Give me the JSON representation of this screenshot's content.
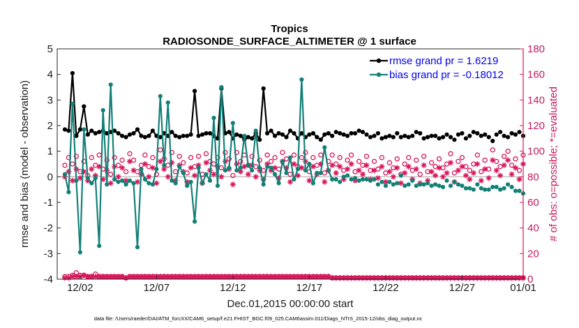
{
  "title": "Tropics",
  "subtitle": "RADIOSONDE_SURFACE_ALTIMETER @ 1 surface",
  "footer": "data file: /Users/raeder/DAI/ATM_forcXX/CAM6_setup/f.e21.FHIST_BGC.f09_025.CAM6assim.011/Diags_NTrS_2015-12/obs_diag_output.nc",
  "colors": {
    "rmse": "#000000",
    "bias": "#138077",
    "obs": "#d9155b",
    "zero_line": "#bdbdbd",
    "legend_text": "#0000ee"
  },
  "chart_data": {
    "type": "line",
    "title": "Tropics",
    "subtitle": "RADIOSONDE_SURFACE_ALTIMETER @ 1 surface",
    "xlabel": "Dec.01,2015 00:00:00 start",
    "ylabel": "rmse and bias (model - observation)",
    "ylabel_right": "# of obs: o=possible; *=evaluated",
    "xlim": [
      0.5,
      31.0
    ],
    "ylim": [
      -4,
      5
    ],
    "ylim_right": [
      0,
      180
    ],
    "xticks": [
      {
        "value": 2,
        "label": "12/02"
      },
      {
        "value": 7,
        "label": "12/07"
      },
      {
        "value": 12,
        "label": "12/12"
      },
      {
        "value": 17,
        "label": "12/17"
      },
      {
        "value": 22,
        "label": "12/22"
      },
      {
        "value": 27,
        "label": "12/27"
      },
      {
        "value": 32,
        "label": "01/01"
      }
    ],
    "yticks": [
      -4,
      -3,
      -2,
      -1,
      0,
      1,
      2,
      3,
      4,
      5
    ],
    "yticks_right": [
      0,
      20,
      40,
      60,
      80,
      100,
      120,
      140,
      160,
      180
    ],
    "zero_line": 0,
    "x_step": 0.25,
    "series": [
      {
        "name": "rmse grand pr = 1.6219",
        "axis": "left",
        "marker": "filled-circle",
        "connected_until_index": 70,
        "values": [
          1.85,
          1.8,
          4.05,
          1.6,
          1.85,
          2.75,
          1.65,
          1.8,
          1.7,
          1.75,
          1.8,
          1.7,
          1.75,
          1.8,
          1.7,
          1.6,
          1.55,
          1.65,
          1.7,
          1.85,
          1.6,
          1.55,
          1.6,
          1.8,
          1.6,
          1.55,
          1.7,
          1.6,
          1.75,
          1.6,
          1.55,
          1.6,
          1.6,
          1.65,
          3.35,
          1.6,
          1.65,
          1.7,
          1.7,
          1.6,
          1.5,
          3.45,
          1.7,
          1.75,
          1.5,
          1.65,
          1.6,
          1.45,
          1.55,
          1.5,
          1.7,
          1.45,
          3.45,
          1.7,
          1.8,
          1.6,
          1.7,
          1.65,
          1.55,
          1.8,
          1.7,
          1.5,
          1.7,
          1.55,
          1.65,
          1.7,
          1.55,
          1.45,
          1.65,
          1.7,
          1.6,
          1.75,
          1.7,
          1.65,
          1.6,
          1.7,
          1.7,
          1.8,
          1.75,
          1.65,
          1.55,
          1.6,
          1.7,
          1.5,
          1.55,
          1.6,
          1.55,
          1.7,
          1.55,
          1.6,
          1.55,
          1.6,
          1.75,
          1.7,
          1.5,
          1.55,
          1.6,
          1.6,
          1.5,
          1.55,
          1.65,
          1.55,
          1.45,
          1.65,
          1.7,
          1.5,
          1.6,
          1.75,
          1.7,
          1.6,
          1.65,
          1.55,
          1.4,
          1.65,
          1.75,
          1.6,
          1.55,
          1.7,
          1.65,
          1.75,
          1.6
        ]
      },
      {
        "name": "bias grand pr = -0.18012",
        "axis": "left",
        "marker": "filled-circle",
        "connected_until_index": 70,
        "values": [
          0.1,
          -0.6,
          2.85,
          -0.15,
          -2.95,
          1.85,
          -0.05,
          -0.25,
          -0.05,
          -2.7,
          2.6,
          -0.3,
          3.6,
          -0.1,
          -0.2,
          -0.15,
          -0.3,
          -0.15,
          -0.25,
          -2.75,
          0.3,
          -0.1,
          -0.25,
          -0.3,
          0.3,
          3.15,
          0.45,
          2.9,
          -0.15,
          -0.25,
          0.4,
          0.15,
          -0.35,
          -0.2,
          -1.75,
          0.35,
          -0.25,
          0.1,
          -0.15,
          2.3,
          -0.35,
          3.5,
          0.25,
          0.35,
          2.1,
          0.25,
          0.35,
          1.6,
          0.45,
          0.25,
          1.8,
          0.35,
          -0.3,
          0.4,
          0.35,
          0.1,
          -0.25,
          0.6,
          0.15,
          0.75,
          -0.1,
          0.3,
          3.8,
          0.25,
          0.5,
          -0.25,
          0.15,
          0.15,
          1.15,
          0.25,
          -0.1,
          -0.1,
          -0.2,
          0.0,
          0.05,
          -0.1,
          -0.05,
          -0.15,
          -0.1,
          -0.1,
          -0.15,
          -0.1,
          -0.3,
          -0.2,
          -0.35,
          -0.2,
          -0.3,
          -0.25,
          0.05,
          -0.35,
          -0.3,
          -0.15,
          -0.35,
          -0.3,
          -0.3,
          -0.25,
          -0.35,
          -0.3,
          -0.35,
          -0.4,
          -0.15,
          -0.35,
          -0.2,
          -0.3,
          -0.35,
          -0.45,
          -0.45,
          -0.5,
          -0.3,
          -0.45,
          -0.5,
          -0.5,
          -0.4,
          -0.4,
          -0.5,
          -0.45,
          -0.3,
          -0.4,
          -0.55,
          -0.55,
          -0.65
        ]
      },
      {
        "name": "possible obs (o)",
        "axis": "right",
        "marker": "open-circle",
        "values": [
          2,
          2,
          3,
          5,
          3,
          3,
          2,
          2,
          4,
          2,
          2,
          2,
          2,
          2,
          2,
          2,
          1,
          2,
          2,
          2,
          2,
          2,
          2,
          2,
          2,
          2,
          2,
          2,
          2,
          2,
          2,
          2,
          2,
          2,
          2,
          2,
          2,
          2,
          2,
          2,
          2,
          2,
          2,
          2,
          2,
          2,
          2,
          2,
          2,
          2,
          2,
          2,
          2,
          2,
          2,
          2,
          2,
          2,
          2,
          2,
          2,
          2,
          2,
          2,
          2,
          2,
          2,
          2,
          2,
          2,
          1,
          1,
          1,
          1,
          1,
          1,
          1,
          1,
          1,
          1,
          1,
          1,
          1,
          1,
          1,
          1,
          1,
          1,
          1,
          1,
          1,
          1,
          1,
          1,
          1,
          1,
          1,
          1,
          1,
          1,
          1,
          1,
          1,
          1,
          1,
          1,
          1,
          1,
          1,
          1,
          1,
          1,
          1,
          1,
          1,
          1,
          1,
          1,
          1,
          1,
          1
        ]
      },
      {
        "name": "possible obs upper cluster (o)",
        "axis": "right",
        "marker": "open-circle",
        "values": [
          89,
          95,
          90,
          96,
          84,
          92,
          81,
          95,
          89,
          97,
          86,
          93,
          82,
          95,
          89,
          93,
          84,
          98,
          93,
          84,
          89,
          97,
          88,
          95,
          82,
          101,
          94,
          89,
          99,
          84,
          96,
          91,
          83,
          95,
          88,
          96,
          82,
          98,
          92,
          90,
          95,
          87,
          99,
          94,
          81,
          99,
          92,
          97,
          89,
          96,
          88,
          93,
          85,
          97,
          92,
          95,
          86,
          99,
          94,
          82,
          97,
          88,
          95,
          99,
          84,
          95,
          89,
          97,
          83,
          92,
          97,
          90,
          95,
          85,
          93,
          97,
          84,
          92,
          89,
          96,
          85,
          92,
          86,
          95,
          83,
          91,
          87,
          94,
          82,
          90,
          95,
          85,
          93,
          82,
          96,
          84,
          91,
          88,
          94,
          87,
          90,
          98,
          83,
          92,
          95,
          88,
          85,
          90,
          97,
          84,
          93,
          86,
          101,
          92,
          88,
          96,
          100,
          89,
          94,
          85,
          97
        ]
      },
      {
        "name": "evaluated obs (*)",
        "axis": "right",
        "marker": "asterisk",
        "values": [
          1,
          1,
          2,
          2,
          2,
          3,
          2,
          2,
          2,
          2,
          2,
          2,
          2,
          2,
          2,
          2,
          1,
          2,
          2,
          2,
          2,
          2,
          2,
          2,
          2,
          2,
          2,
          2,
          2,
          2,
          2,
          2,
          2,
          2,
          2,
          2,
          2,
          2,
          2,
          2,
          2,
          2,
          2,
          2,
          2,
          2,
          2,
          2,
          2,
          2,
          2,
          2,
          2,
          2,
          2,
          2,
          2,
          2,
          2,
          2,
          2,
          2,
          2,
          2,
          2,
          2,
          2,
          2,
          2,
          2,
          1,
          1,
          1,
          1,
          1,
          1,
          1,
          1,
          1,
          1,
          1,
          1,
          1,
          1,
          1,
          1,
          1,
          1,
          1,
          1,
          1,
          1,
          1,
          1,
          1,
          1,
          1,
          1,
          1,
          1,
          1,
          1,
          1,
          1,
          1,
          1,
          1,
          1,
          1,
          1,
          1,
          1,
          1,
          1,
          1,
          1,
          1,
          1,
          1,
          1,
          1
        ]
      },
      {
        "name": "evaluated obs upper cluster (*)",
        "axis": "right",
        "marker": "asterisk",
        "values": [
          80,
          84,
          77,
          86,
          79,
          84,
          77,
          86,
          81,
          88,
          78,
          85,
          75,
          88,
          80,
          87,
          77,
          92,
          85,
          76,
          82,
          90,
          80,
          87,
          75,
          92,
          86,
          80,
          91,
          77,
          89,
          84,
          76,
          87,
          81,
          89,
          75,
          91,
          85,
          82,
          88,
          80,
          92,
          86,
          74,
          90,
          84,
          88,
          82,
          89,
          80,
          85,
          78,
          90,
          85,
          87,
          79,
          92,
          87,
          76,
          90,
          81,
          87,
          92,
          77,
          88,
          82,
          90,
          76,
          85,
          89,
          83,
          88,
          78,
          86,
          90,
          77,
          85,
          82,
          89,
          78,
          85,
          79,
          88,
          76,
          84,
          80,
          87,
          75,
          83,
          88,
          78,
          86,
          75,
          89,
          77,
          84,
          81,
          87,
          80,
          83,
          91,
          76,
          85,
          88,
          81,
          78,
          83,
          90,
          77,
          86,
          79,
          93,
          85,
          81,
          89,
          93,
          82,
          87,
          78,
          90
        ]
      }
    ]
  },
  "legend": [
    {
      "label": "rmse grand pr = 1.6219"
    },
    {
      "label": "bias grand pr = -0.18012"
    }
  ]
}
